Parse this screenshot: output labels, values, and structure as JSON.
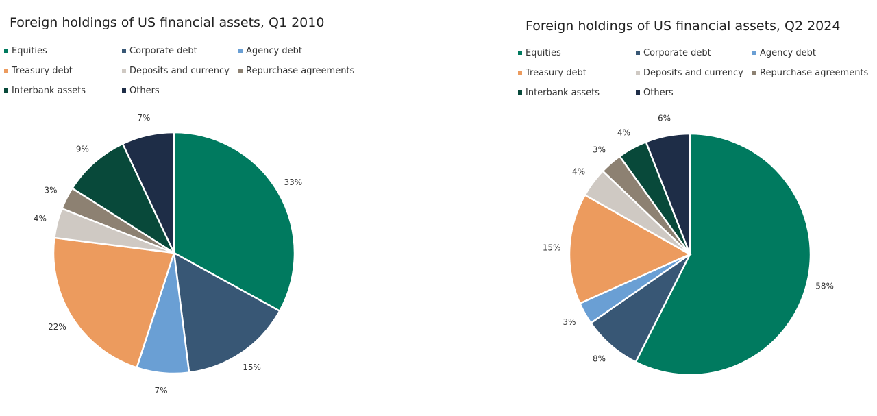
{
  "chart_data": [
    {
      "type": "pie",
      "title": "Foreign holdings of US financial assets, Q1 2010",
      "legend_position": "top",
      "categories": [
        "Equities",
        "Corporate debt",
        "Agency debt",
        "Treasury debt",
        "Deposits and currency",
        "Repurchase agreements",
        "Interbank assets",
        "Others"
      ],
      "values": [
        33,
        15,
        7,
        22,
        4,
        3,
        9,
        7
      ],
      "labels": [
        "33%",
        "15%",
        "7%",
        "22%",
        "4%",
        "3%",
        "9%",
        "7%"
      ]
    },
    {
      "type": "pie",
      "title": "Foreign holdings of US financial assets, Q2 2024",
      "legend_position": "top",
      "categories": [
        "Equities",
        "Corporate debt",
        "Agency debt",
        "Treasury debt",
        "Deposits and currency",
        "Repurchase agreements",
        "Interbank assets",
        "Others"
      ],
      "values": [
        58,
        8,
        3,
        15,
        4,
        3,
        4,
        6
      ],
      "labels": [
        "58%",
        "8%",
        "3%",
        "15%",
        "4%",
        "3%",
        "4%",
        "6%"
      ]
    }
  ],
  "colors": [
    "#007a5f",
    "#385775",
    "#6a9fd4",
    "#ec9b5e",
    "#cfc9c3",
    "#8d8172",
    "#08493a",
    "#1e2d47"
  ]
}
